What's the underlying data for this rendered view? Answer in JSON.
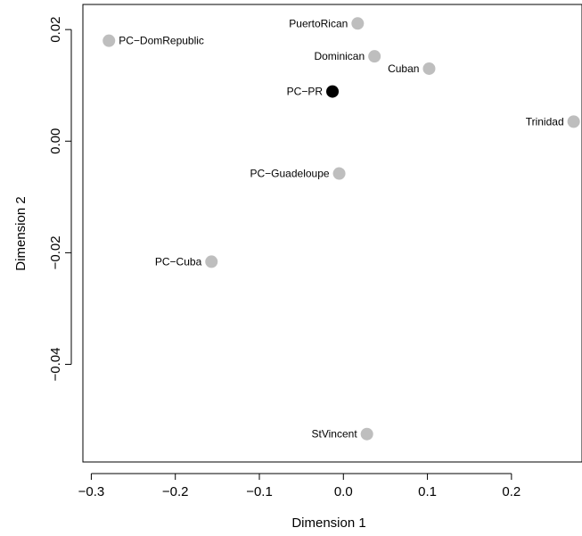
{
  "chart_data": {
    "type": "scatter",
    "title": "",
    "xlabel": "Dimension 1",
    "ylabel": "Dimension 2",
    "xlim": [
      -0.31,
      0.285
    ],
    "ylim": [
      -0.0575,
      0.0245
    ],
    "xticks": [
      -0.3,
      -0.2,
      -0.1,
      0.0,
      0.1,
      0.2
    ],
    "xtick_labels": [
      "−0.3",
      "−0.2",
      "−0.1",
      "0.0",
      "0.1",
      "0.2"
    ],
    "yticks": [
      0.02,
      0.0,
      -0.02,
      -0.04
    ],
    "ytick_labels": [
      "0.02",
      "0.00",
      "−0.02",
      "−0.04"
    ],
    "grid": false,
    "points": [
      {
        "label": "PC−DomRepublic",
        "x": -0.279,
        "y": 0.018,
        "color": "#bebebe",
        "label_side": "right"
      },
      {
        "label": "PuertoRican",
        "x": 0.017,
        "y": 0.0211,
        "color": "#bebebe",
        "label_side": "left"
      },
      {
        "label": "Dominican",
        "x": 0.037,
        "y": 0.0152,
        "color": "#bebebe",
        "label_side": "left"
      },
      {
        "label": "Cuban",
        "x": 0.102,
        "y": 0.013,
        "color": "#bebebe",
        "label_side": "left"
      },
      {
        "label": "PC−PR",
        "x": -0.013,
        "y": 0.0089,
        "color": "#000000",
        "label_side": "left"
      },
      {
        "label": "Trinidad",
        "x": 0.274,
        "y": 0.0035,
        "color": "#bebebe",
        "label_side": "left"
      },
      {
        "label": "PC−Guadeloupe",
        "x": -0.005,
        "y": -0.0058,
        "color": "#bebebe",
        "label_side": "left"
      },
      {
        "label": "PC−Cuba",
        "x": -0.157,
        "y": -0.0216,
        "color": "#bebebe",
        "label_side": "left"
      },
      {
        "label": "StVincent",
        "x": 0.028,
        "y": -0.0525,
        "color": "#bebebe",
        "label_side": "left"
      }
    ]
  }
}
